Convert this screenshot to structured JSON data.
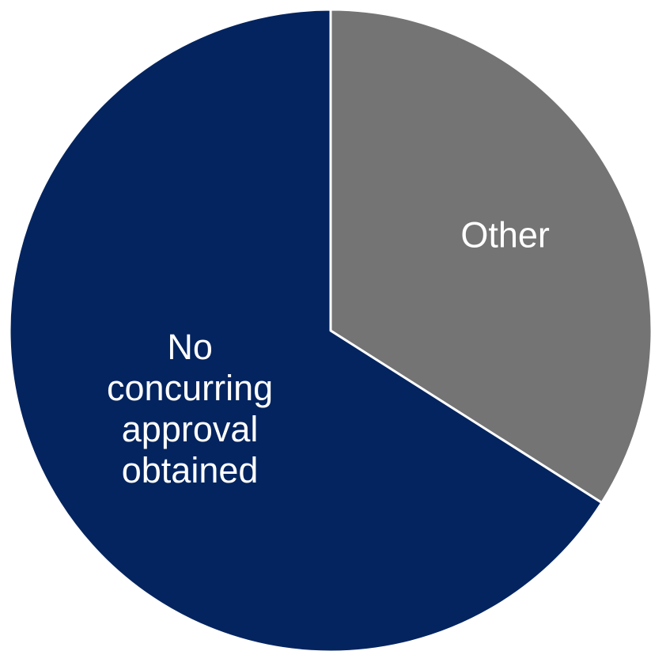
{
  "chart_data": {
    "type": "pie",
    "slices": [
      {
        "label": "Other",
        "label_lines": [
          "Other"
        ],
        "value": 34,
        "color": "#747474",
        "text_color": "#ffffff"
      },
      {
        "label": "No concurring approval obtained",
        "label_lines": [
          "No",
          "concurring",
          "approval",
          "obtained"
        ],
        "value": 66,
        "color": "#03245f",
        "text_color": "#ffffff"
      }
    ],
    "start_angle": "12 o'clock",
    "direction": "clockwise",
    "legend": "none"
  }
}
